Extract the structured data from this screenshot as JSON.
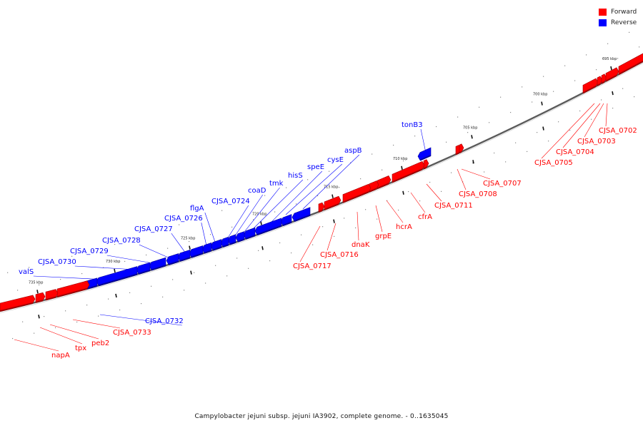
{
  "legend": {
    "forward": {
      "label": "Forward",
      "color": "#ff0000"
    },
    "reverse": {
      "label": "Reverse",
      "color": "#0000ff"
    }
  },
  "caption": "Campylobacter jejuni subsp. jejuni IA3902, complete genome. - 0..1635045",
  "ticks": [
    "695 kbp",
    "700 kbp",
    "705 kbp",
    "710 kbp",
    "715 kbp",
    "720 kbp",
    "725 kbp",
    "730 kbp",
    "735 kbp"
  ],
  "labels": {
    "forward": [
      "CJSA_0702",
      "CJSA_0703",
      "CJSA_0704",
      "CJSA_0705",
      "CJSA_0707",
      "CJSA_0708",
      "CJSA_0711",
      "cfrA",
      "hcrA",
      "grpE",
      "dnaK",
      "CJSA_0716",
      "CJSA_0717",
      "CJSA_0733",
      "peb2",
      "tpx",
      "napA"
    ],
    "reverse": [
      "tonB3",
      "aspB",
      "cysE",
      "speE",
      "hisS",
      "tmk",
      "coaD",
      "CJSA_0724",
      "flgA",
      "CJSA_0726",
      "CJSA_0727",
      "CJSA_0728",
      "CJSA_0729",
      "CJSA_0730",
      "valS",
      "CJSA_0732"
    ]
  }
}
